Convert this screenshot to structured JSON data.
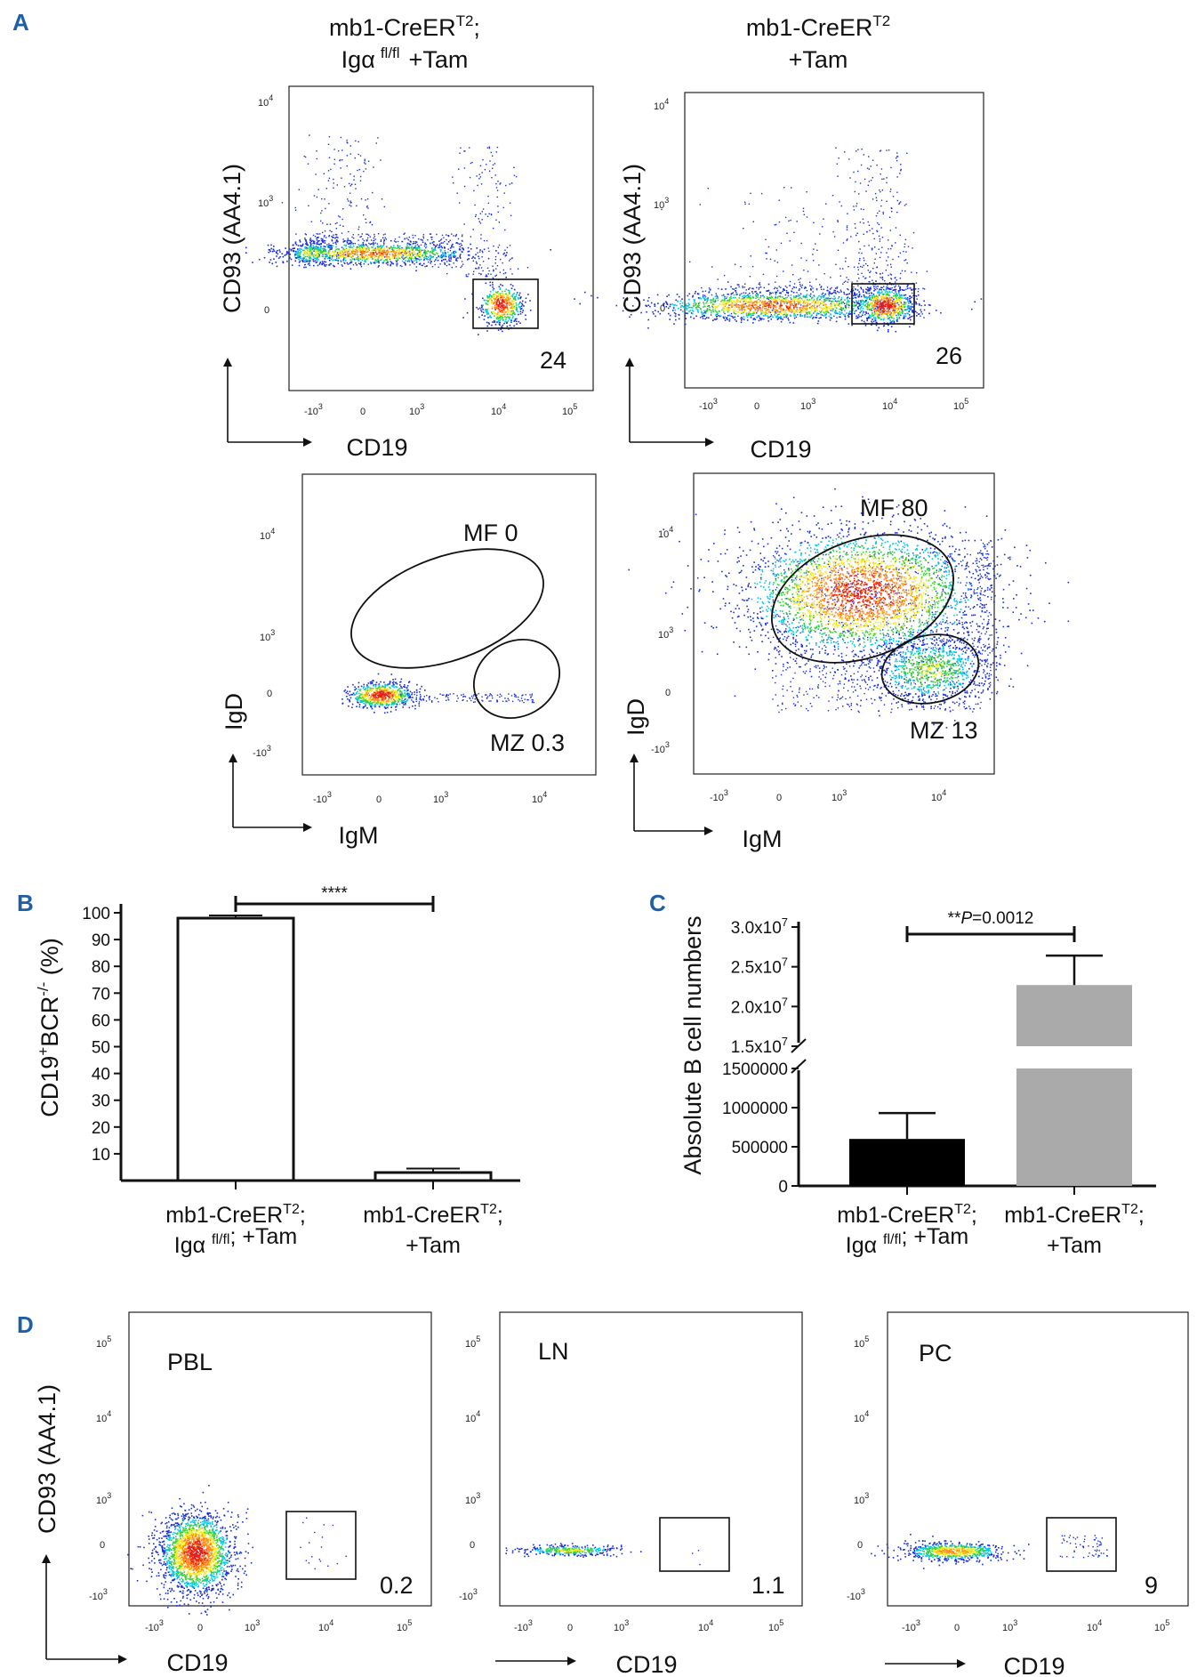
{
  "panels": {
    "A": "A",
    "B": "B",
    "C": "C",
    "D": "D"
  },
  "panelA": {
    "col1_title_line1": "mb1-CreER",
    "col1_title_sup": "T2",
    "col1_title_semicolon": ";",
    "col1_title_line2a": "Igα",
    "col1_title_line2_sup": "fl/fl",
    "col1_title_line2b": "+Tam",
    "col2_title_line1": "mb1-CreER",
    "col2_title_sup": "T2",
    "col2_title_line2": "+Tam",
    "y_label_top": "CD93 (AA4.1)",
    "x_label_top": "CD19",
    "y_label_bottom": "IgD",
    "x_label_bottom": "IgM",
    "gate_top_left": "24",
    "gate_top_right": "26",
    "mf_left": "MF  0",
    "mz_left": "MZ 0.3",
    "mf_right": "MF 80",
    "mz_right": "MZ 13",
    "ticks": {
      "b": "10",
      "n3": "-10",
      "e3": "3",
      "e4": "4",
      "e5": "5",
      "zero": "0"
    }
  },
  "chart_data": [
    {
      "type": "bar",
      "panel": "B",
      "title": "****",
      "ylabel_base": "CD19",
      "ylabel_sup1": "+",
      "ylabel_mid": "BCR",
      "ylabel_sup2": "-/-",
      "ylabel_end": " (%)",
      "ylim": [
        0,
        100
      ],
      "yticks": [
        "10",
        "20",
        "30",
        "40",
        "50",
        "60",
        "70",
        "80",
        "90",
        "100"
      ],
      "categories": [
        {
          "line1": "mb1-CreER",
          "sup": "T2",
          "line1b": ";",
          "line2a": "Igα ",
          "line2sup": "fl/fl",
          "line2b": "; +Tam"
        },
        {
          "line1": "mb1-CreER",
          "sup": "T2",
          "line1b": ";",
          "line2a": "+Tam",
          "line2sup": "",
          "line2b": ""
        }
      ],
      "values": [
        98,
        3
      ],
      "errors": [
        1,
        1.5
      ],
      "colors": [
        "#ffffff",
        "#ffffff"
      ]
    },
    {
      "type": "bar",
      "panel": "C",
      "annotation_prefix": "**",
      "annotation_p": "P",
      "annotation_value": "=0.0012",
      "ylabel": "Absolute B cell numbers",
      "yticks_low": [
        "0",
        "500000",
        "1000000",
        "1500000"
      ],
      "yticks_high_base": [
        "1.5x10",
        "2.0x10",
        "2.5x10",
        "3.0x10"
      ],
      "yticks_high_exp": "7",
      "categories": [
        {
          "line1": "mb1-CreER",
          "sup": "T2",
          "line1b": ";",
          "line2a": "Igα ",
          "line2sup": "fl/fl",
          "line2b": "; +Tam"
        },
        {
          "line1": "mb1-CreER",
          "sup": "T2",
          "line1b": ";",
          "line2a": "+Tam",
          "line2sup": "",
          "line2b": ""
        }
      ],
      "values": [
        600000,
        22700000
      ],
      "errors": [
        330000,
        3700000
      ],
      "colors": [
        "#000000",
        "#aaaaaa"
      ]
    }
  ],
  "panelD": {
    "y_label": "CD93 (AA4.1)",
    "x_label": "CD19",
    "plots": [
      {
        "name": "PBL",
        "gate": "0.2"
      },
      {
        "name": "LN",
        "gate": "1.1"
      },
      {
        "name": "PC",
        "gate": "9"
      }
    ]
  },
  "colors": {
    "panel_label": "#1f5fa8",
    "dot_blue": "#1a2fd6",
    "dot_cyan": "#00c8e6",
    "dot_green": "#35d03a",
    "dot_yellow": "#f2e81c",
    "dot_red": "#e0201c"
  }
}
